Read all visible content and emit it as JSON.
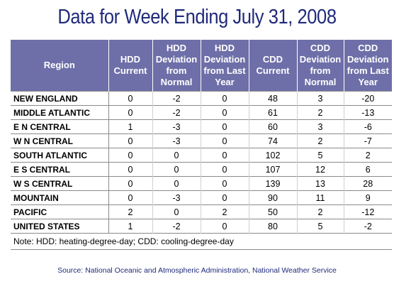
{
  "title": "Data for Week Ending July 31, 2008",
  "headers": [
    "Region",
    "HDD Current",
    "HDD Deviation from Normal",
    "HDD Deviation from Last Year",
    "CDD Current",
    "CDD Deviation from Normal",
    "CDD Deviation from Last Year"
  ],
  "rows": [
    [
      "NEW ENGLAND",
      "0",
      "-2",
      "0",
      "48",
      "3",
      "-20"
    ],
    [
      "MIDDLE ATLANTIC",
      "0",
      "-2",
      "0",
      "61",
      "2",
      "-13"
    ],
    [
      "E N CENTRAL",
      "1",
      "-3",
      "0",
      "60",
      "3",
      "-6"
    ],
    [
      "W N CENTRAL",
      "0",
      "-3",
      "0",
      "74",
      "2",
      "-7"
    ],
    [
      "SOUTH ATLANTIC",
      "0",
      "0",
      "0",
      "102",
      "5",
      "2"
    ],
    [
      "E S CENTRAL",
      "0",
      "0",
      "0",
      "107",
      "12",
      "6"
    ],
    [
      "W S CENTRAL",
      "0",
      "0",
      "0",
      "139",
      "13",
      "28"
    ],
    [
      "MOUNTAIN",
      "0",
      "-3",
      "0",
      "90",
      "11",
      "9"
    ],
    [
      "PACIFIC",
      "2",
      "0",
      "2",
      "50",
      "2",
      "-12"
    ],
    [
      "UNITED STATES",
      "1",
      "-2",
      "0",
      "80",
      "5",
      "-2"
    ]
  ],
  "note": "Note: HDD: heating-degree-day; CDD: cooling-degree-day",
  "source": "Source:  National Oceanic and Atmospheric Administration, National Weather Service",
  "colors": {
    "title": "#1f2a7a",
    "header_bg": "#6e6fa8"
  }
}
